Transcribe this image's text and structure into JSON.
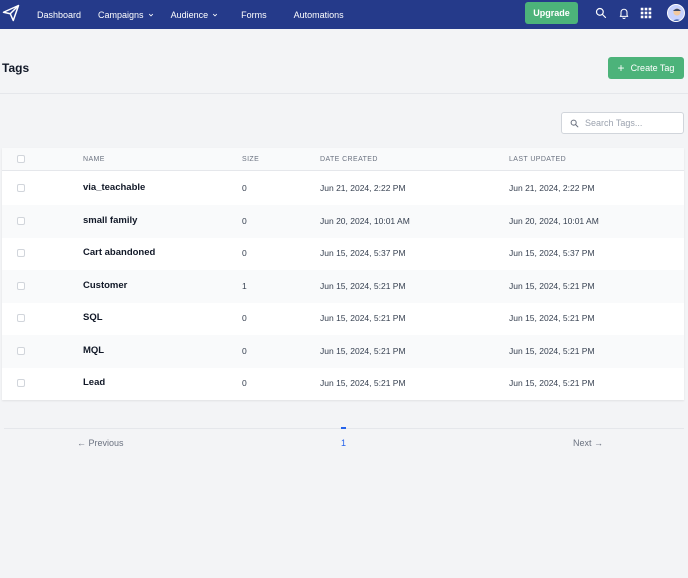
{
  "nav": {
    "items": [
      {
        "label": "Dashboard",
        "dropdown": false
      },
      {
        "label": "Campaigns",
        "dropdown": true
      },
      {
        "label": "Audience",
        "dropdown": true
      },
      {
        "label": "Forms",
        "dropdown": false
      },
      {
        "label": "Automations",
        "dropdown": false
      }
    ],
    "upgrade_label": "Upgrade",
    "icons": [
      "paper-plane-logo-icon",
      "search-icon",
      "bell-icon",
      "grid-icon",
      "avatar"
    ]
  },
  "page": {
    "title": "Tags",
    "create_label": "Create Tag"
  },
  "search": {
    "placeholder": "Search Tags..."
  },
  "table": {
    "columns": [
      "NAME",
      "SIZE",
      "DATE CREATED",
      "LAST UPDATED"
    ],
    "rows": [
      {
        "name": "via_teachable",
        "size": "0",
        "created": "Jun 21, 2024, 2:22 PM",
        "updated": "Jun 21, 2024, 2:22 PM"
      },
      {
        "name": "small family",
        "size": "0",
        "created": "Jun 20, 2024, 10:01 AM",
        "updated": "Jun 20, 2024, 10:01 AM"
      },
      {
        "name": "Cart abandoned",
        "size": "0",
        "created": "Jun 15, 2024, 5:37 PM",
        "updated": "Jun 15, 2024, 5:37 PM"
      },
      {
        "name": "Customer",
        "size": "1",
        "created": "Jun 15, 2024, 5:21 PM",
        "updated": "Jun 15, 2024, 5:21 PM"
      },
      {
        "name": "SQL",
        "size": "0",
        "created": "Jun 15, 2024, 5:21 PM",
        "updated": "Jun 15, 2024, 5:21 PM"
      },
      {
        "name": "MQL",
        "size": "0",
        "created": "Jun 15, 2024, 5:21 PM",
        "updated": "Jun 15, 2024, 5:21 PM"
      },
      {
        "name": "Lead",
        "size": "0",
        "created": "Jun 15, 2024, 5:21 PM",
        "updated": "Jun 15, 2024, 5:21 PM"
      }
    ]
  },
  "pagination": {
    "previous": "← Previous",
    "current": "1",
    "next": "Next →"
  },
  "colors": {
    "nav_bg": "#253a8a",
    "accent_green": "#4cb37a",
    "link_blue": "#2563eb"
  }
}
